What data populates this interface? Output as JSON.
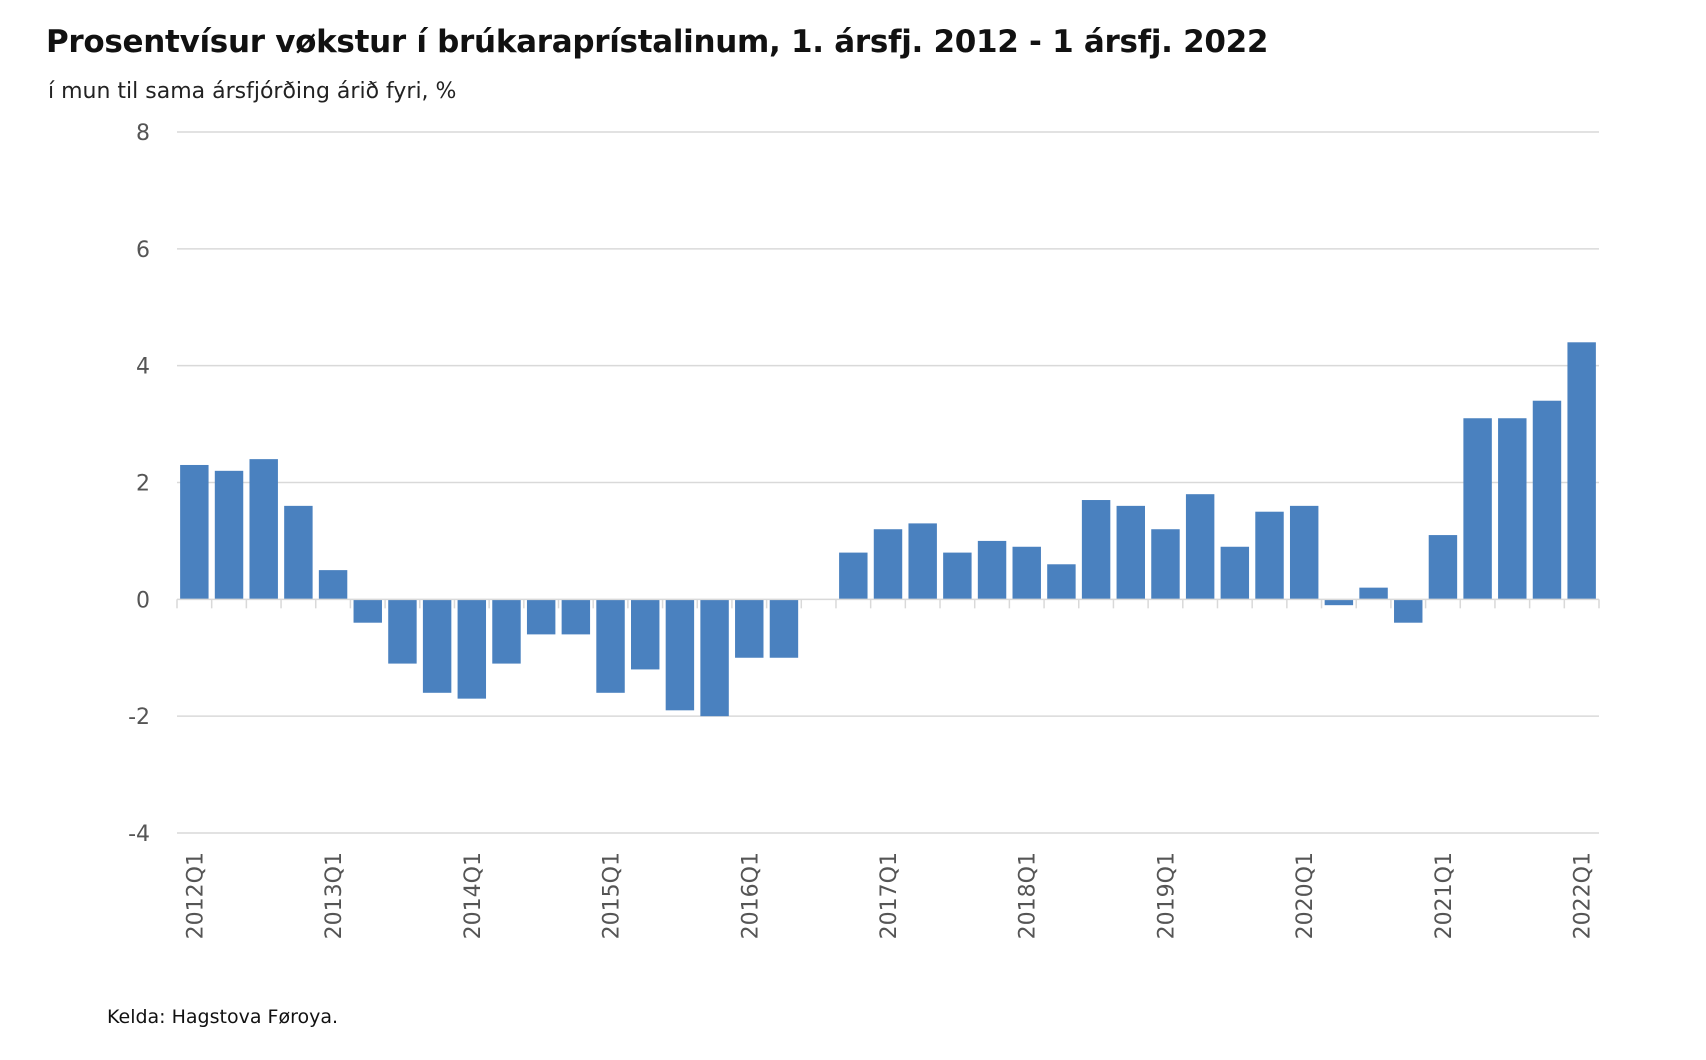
{
  "chart_data": {
    "type": "bar",
    "title": "Prosentvísur vøkstur í brúkaraprístalinum, 1. ársfj. 2012 - 1 ársfj. 2022",
    "subtitle": "í mun til sama ársfjórðing árið fyri, %",
    "xlabel": "",
    "ylabel": "",
    "ylim": [
      -4,
      8
    ],
    "yticks": [
      8,
      6,
      4,
      2,
      0,
      -2,
      -4
    ],
    "grid": true,
    "legend": "none",
    "bar_color": "#4a81bf",
    "categories": [
      "2012Q1",
      "2012Q2",
      "2012Q3",
      "2012Q4",
      "2013Q1",
      "2013Q2",
      "2013Q3",
      "2013Q4",
      "2014Q1",
      "2014Q2",
      "2014Q3",
      "2014Q4",
      "2015Q1",
      "2015Q2",
      "2015Q3",
      "2015Q4",
      "2016Q1",
      "2016Q2",
      "2016Q3",
      "2016Q4",
      "2017Q1",
      "2017Q2",
      "2017Q3",
      "2017Q4",
      "2018Q1",
      "2018Q2",
      "2018Q3",
      "2018Q4",
      "2019Q1",
      "2019Q2",
      "2019Q3",
      "2019Q4",
      "2020Q1",
      "2020Q2",
      "2020Q3",
      "2020Q4",
      "2021Q1",
      "2021Q2",
      "2021Q3",
      "2021Q4",
      "2022Q1"
    ],
    "tick_labels": [
      "2012Q1",
      "2013Q1",
      "2014Q1",
      "2015Q1",
      "2016Q1",
      "2017Q1",
      "2018Q1",
      "2019Q1",
      "2020Q1",
      "2021Q1",
      "2022Q1"
    ],
    "values": [
      2.3,
      2.2,
      2.4,
      1.6,
      0.5,
      -0.4,
      -1.1,
      -1.6,
      -1.7,
      -1.1,
      -0.6,
      -0.6,
      -1.6,
      -1.2,
      -1.9,
      -2.0,
      -1.0,
      -1.0,
      0,
      0.8,
      1.2,
      1.3,
      0.8,
      1.0,
      0.9,
      0.6,
      1.7,
      1.6,
      1.2,
      1.8,
      0.9,
      1.5,
      1.6,
      -0.1,
      0.2,
      -0.4,
      1.1,
      3.1,
      3.1,
      3.4,
      4.4
    ]
  },
  "source": "Kelda: Hagstova Føroya."
}
